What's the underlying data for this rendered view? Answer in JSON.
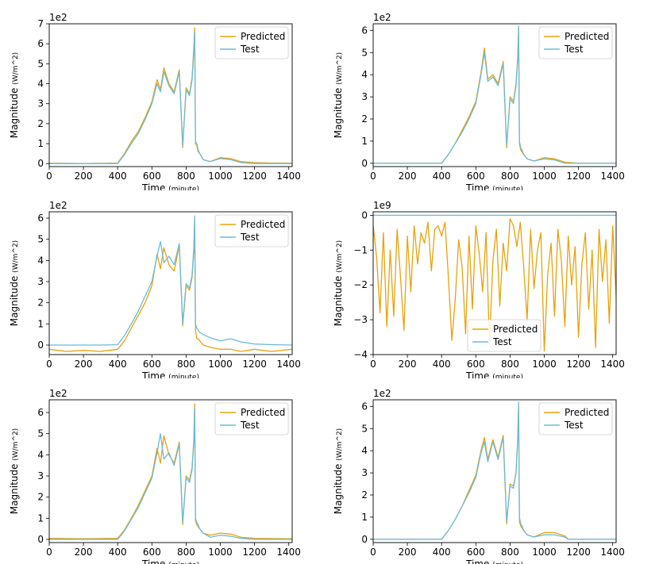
{
  "colors": {
    "predicted": "#e8a20c",
    "test": "#6bbbd6"
  },
  "chart_data": [
    {
      "type": "line",
      "multiplier": "1e2",
      "xlabel": "Time",
      "xlabel_unit": "(minute)",
      "ylabel": "Magnitude",
      "ylabel_unit": "(W/m^2)",
      "xlim": [
        0,
        1420
      ],
      "ylim": [
        -0.15,
        7.0
      ],
      "xticks": [
        0,
        200,
        400,
        600,
        800,
        1000,
        1200,
        1400
      ],
      "yticks": [
        0,
        1,
        2,
        3,
        4,
        5,
        6,
        7
      ],
      "legend": "top-right",
      "series": [
        {
          "name": "Predicted",
          "x": [
            0,
            200,
            400,
            440,
            480,
            520,
            560,
            600,
            630,
            650,
            670,
            700,
            730,
            760,
            780,
            800,
            820,
            835,
            845,
            850,
            855,
            862,
            870,
            880,
            900,
            940,
            1000,
            1060,
            1120,
            1200,
            1300,
            1420
          ],
          "y": [
            0.02,
            0.0,
            0.03,
            0.5,
            1.1,
            1.6,
            2.3,
            3.1,
            4.2,
            3.7,
            4.8,
            4.0,
            3.6,
            4.7,
            0.8,
            3.8,
            3.5,
            4.3,
            5.8,
            6.8,
            1.0,
            0.9,
            0.6,
            0.5,
            0.2,
            0.1,
            0.3,
            0.25,
            0.1,
            0.05,
            0.03,
            0.02
          ]
        },
        {
          "name": "Test",
          "x": [
            0,
            200,
            400,
            440,
            480,
            520,
            560,
            600,
            630,
            650,
            670,
            700,
            730,
            760,
            780,
            800,
            820,
            835,
            845,
            850,
            855,
            862,
            870,
            880,
            900,
            940,
            1000,
            1060,
            1120,
            1200,
            1300,
            1420
          ],
          "y": [
            0.0,
            0.0,
            0.0,
            0.45,
            1.0,
            1.5,
            2.2,
            3.0,
            4.0,
            3.6,
            4.6,
            3.9,
            3.5,
            4.6,
            0.9,
            3.7,
            3.4,
            4.2,
            5.6,
            6.6,
            1.1,
            1.0,
            0.7,
            0.5,
            0.2,
            0.1,
            0.25,
            0.2,
            0.05,
            0.0,
            0.0,
            0.0
          ]
        }
      ]
    },
    {
      "type": "line",
      "multiplier": "1e2",
      "xlabel": "Time",
      "xlabel_unit": "(minute)",
      "ylabel": "Magnitude",
      "ylabel_unit": "(W/m^2)",
      "xlim": [
        0,
        1420
      ],
      "ylim": [
        -0.15,
        6.3
      ],
      "xticks": [
        0,
        200,
        400,
        600,
        800,
        1000,
        1200,
        1400
      ],
      "yticks": [
        0,
        1,
        2,
        3,
        4,
        5,
        6
      ],
      "legend": "top-right",
      "series": [
        {
          "name": "Predicted",
          "x": [
            0,
            200,
            400,
            440,
            480,
            520,
            560,
            600,
            630,
            650,
            670,
            700,
            730,
            760,
            780,
            800,
            820,
            835,
            845,
            850,
            855,
            862,
            870,
            880,
            900,
            940,
            1000,
            1060,
            1120,
            1200,
            1300,
            1420
          ],
          "y": [
            0.0,
            0.0,
            0.0,
            0.4,
            0.9,
            1.5,
            2.1,
            2.8,
            4.1,
            5.2,
            3.8,
            4.0,
            3.6,
            4.6,
            0.7,
            3.0,
            2.8,
            3.6,
            4.8,
            6.1,
            0.9,
            0.6,
            0.5,
            0.4,
            0.2,
            0.1,
            0.25,
            0.2,
            0.05,
            0.0,
            0.0,
            0.0
          ]
        },
        {
          "name": "Test",
          "x": [
            0,
            200,
            400,
            440,
            480,
            520,
            560,
            600,
            630,
            650,
            670,
            700,
            730,
            760,
            780,
            800,
            820,
            835,
            845,
            850,
            855,
            862,
            870,
            880,
            900,
            940,
            1000,
            1060,
            1120,
            1200,
            1300,
            1420
          ],
          "y": [
            0.0,
            0.0,
            0.0,
            0.4,
            0.9,
            1.4,
            2.0,
            2.7,
            4.0,
            5.0,
            3.7,
            3.9,
            3.5,
            4.5,
            0.8,
            2.9,
            2.7,
            3.5,
            4.7,
            6.2,
            1.0,
            0.7,
            0.6,
            0.4,
            0.2,
            0.1,
            0.2,
            0.15,
            0.0,
            0.0,
            0.0,
            0.0
          ]
        }
      ]
    },
    {
      "type": "line",
      "multiplier": "1e2",
      "xlabel": "Time",
      "xlabel_unit": "(minute)",
      "ylabel": "Magnitude",
      "ylabel_unit": "(W/m^2)",
      "xlim": [
        0,
        1420
      ],
      "ylim": [
        -0.45,
        6.3
      ],
      "xticks": [
        0,
        200,
        400,
        600,
        800,
        1000,
        1200,
        1400
      ],
      "yticks": [
        0,
        1,
        2,
        3,
        4,
        5,
        6
      ],
      "legend": "top-right",
      "series": [
        {
          "name": "Predicted",
          "x": [
            0,
            100,
            200,
            300,
            400,
            440,
            480,
            520,
            560,
            600,
            630,
            650,
            670,
            700,
            730,
            760,
            780,
            800,
            820,
            835,
            845,
            850,
            855,
            862,
            870,
            880,
            900,
            940,
            1000,
            1060,
            1120,
            1200,
            1300,
            1420
          ],
          "y": [
            -0.2,
            -0.3,
            -0.25,
            -0.3,
            -0.2,
            0.2,
            0.8,
            1.4,
            2.0,
            2.8,
            4.3,
            3.6,
            4.6,
            3.8,
            3.5,
            4.7,
            0.9,
            2.8,
            2.6,
            3.2,
            4.4,
            5.8,
            0.7,
            0.3,
            0.3,
            0.2,
            0.0,
            -0.1,
            -0.2,
            -0.2,
            -0.3,
            -0.2,
            -0.3,
            -0.2
          ]
        },
        {
          "name": "Test",
          "x": [
            0,
            100,
            200,
            300,
            400,
            440,
            480,
            520,
            560,
            600,
            630,
            650,
            670,
            700,
            730,
            760,
            780,
            800,
            820,
            835,
            845,
            850,
            855,
            862,
            870,
            880,
            900,
            940,
            1000,
            1060,
            1120,
            1200,
            1300,
            1420
          ],
          "y": [
            0.0,
            0.0,
            0.0,
            0.0,
            0.02,
            0.45,
            1.0,
            1.6,
            2.3,
            3.0,
            4.2,
            4.9,
            3.9,
            4.2,
            3.8,
            4.8,
            1.0,
            2.9,
            2.7,
            3.3,
            4.6,
            6.1,
            1.0,
            0.8,
            0.7,
            0.6,
            0.5,
            0.35,
            0.2,
            0.3,
            0.15,
            0.05,
            0.02,
            0.0
          ]
        }
      ]
    },
    {
      "type": "line",
      "multiplier": "1e9",
      "xlabel": "Time",
      "xlabel_unit": "(minute)",
      "ylabel": "Magnitude",
      "ylabel_unit": "(W/m^2)",
      "xlim": [
        0,
        1420
      ],
      "ylim": [
        -4.0,
        0.1
      ],
      "xticks": [
        0,
        200,
        400,
        600,
        800,
        1000,
        1200,
        1400
      ],
      "yticks": [
        0,
        -1,
        -2,
        -3,
        -4
      ],
      "legend": "lower-center",
      "series": [
        {
          "name": "Predicted",
          "x": [
            0,
            20,
            40,
            60,
            80,
            100,
            120,
            140,
            160,
            180,
            200,
            220,
            240,
            260,
            280,
            300,
            320,
            340,
            360,
            380,
            400,
            420,
            440,
            460,
            480,
            500,
            520,
            540,
            560,
            580,
            600,
            620,
            640,
            660,
            680,
            700,
            720,
            740,
            760,
            780,
            800,
            820,
            840,
            860,
            880,
            900,
            920,
            940,
            960,
            980,
            1000,
            1020,
            1040,
            1060,
            1080,
            1100,
            1120,
            1140,
            1160,
            1180,
            1200,
            1220,
            1240,
            1260,
            1280,
            1300,
            1320,
            1340,
            1360,
            1380,
            1400,
            1420
          ],
          "y": [
            -0.3,
            -1.2,
            -2.8,
            -0.5,
            -3.2,
            -1.0,
            -2.9,
            -0.4,
            -1.8,
            -3.3,
            -0.6,
            -2.2,
            -0.3,
            -1.4,
            -0.5,
            -0.8,
            -0.2,
            -1.6,
            -0.4,
            -0.3,
            -0.6,
            -0.2,
            -1.8,
            -3.6,
            -2.4,
            -0.7,
            -1.5,
            -3.4,
            -0.6,
            -2.7,
            -0.3,
            -1.1,
            -2.2,
            -0.5,
            -3.7,
            -1.3,
            -0.4,
            -2.6,
            -0.8,
            -1.6,
            -0.1,
            -0.3,
            -0.9,
            -0.2,
            -1.5,
            -3.0,
            -0.4,
            -2.1,
            -1.0,
            -0.5,
            -3.9,
            -1.7,
            -0.8,
            -2.9,
            -0.4,
            -1.3,
            -3.2,
            -0.6,
            -2.0,
            -0.9,
            -3.5,
            -1.4,
            -0.5,
            -2.7,
            -1.0,
            -3.8,
            -0.4,
            -1.9,
            -0.7,
            -3.1,
            -0.3,
            -2.3
          ]
        },
        {
          "name": "Test",
          "x": [
            0,
            1420
          ],
          "y": [
            0.0,
            0.0
          ]
        }
      ]
    },
    {
      "type": "line",
      "multiplier": "1e2",
      "xlabel": "Time",
      "xlabel_unit": "(minute)",
      "ylabel": "Magnitude",
      "ylabel_unit": "(W/m^2)",
      "xlim": [
        0,
        1420
      ],
      "ylim": [
        -0.15,
        6.6
      ],
      "xticks": [
        0,
        200,
        400,
        600,
        800,
        1000,
        1200,
        1400
      ],
      "yticks": [
        0,
        1,
        2,
        3,
        4,
        5,
        6
      ],
      "legend": "top-right",
      "series": [
        {
          "name": "Predicted",
          "x": [
            0,
            200,
            400,
            440,
            480,
            520,
            560,
            600,
            630,
            650,
            670,
            700,
            730,
            760,
            780,
            800,
            820,
            835,
            845,
            850,
            855,
            862,
            870,
            880,
            900,
            940,
            1000,
            1060,
            1120,
            1200,
            1300,
            1420
          ],
          "y": [
            0.05,
            0.03,
            0.05,
            0.45,
            1.0,
            1.6,
            2.3,
            3.0,
            4.3,
            3.6,
            4.9,
            4.0,
            3.6,
            4.6,
            0.7,
            3.0,
            2.8,
            3.4,
            4.7,
            6.4,
            0.9,
            0.7,
            0.6,
            0.5,
            0.3,
            0.2,
            0.3,
            0.25,
            0.1,
            0.05,
            0.04,
            0.03
          ]
        },
        {
          "name": "Test",
          "x": [
            0,
            200,
            400,
            440,
            480,
            520,
            560,
            600,
            630,
            650,
            670,
            700,
            730,
            760,
            780,
            800,
            820,
            835,
            845,
            850,
            855,
            862,
            870,
            880,
            900,
            940,
            1000,
            1060,
            1120,
            1200,
            1300,
            1420
          ],
          "y": [
            0.0,
            0.0,
            0.0,
            0.4,
            0.95,
            1.5,
            2.2,
            2.9,
            4.1,
            5.0,
            3.8,
            4.1,
            3.5,
            4.5,
            0.8,
            2.9,
            2.7,
            3.3,
            4.6,
            6.2,
            1.0,
            0.8,
            0.7,
            0.5,
            0.3,
            0.1,
            0.2,
            0.15,
            0.05,
            0.0,
            0.0,
            0.0
          ]
        }
      ]
    },
    {
      "type": "line",
      "multiplier": "1e2",
      "xlabel": "Time",
      "xlabel_unit": "(minute)",
      "ylabel": "Magnitude",
      "ylabel_unit": "(W/m^2)",
      "xlim": [
        0,
        1420
      ],
      "ylim": [
        -0.15,
        6.3
      ],
      "xticks": [
        0,
        200,
        400,
        600,
        800,
        1000,
        1200,
        1400
      ],
      "yticks": [
        0,
        1,
        2,
        3,
        4,
        5,
        6
      ],
      "legend": "top-right",
      "series": [
        {
          "name": "Predicted",
          "x": [
            0,
            200,
            400,
            440,
            480,
            520,
            560,
            600,
            630,
            650,
            670,
            700,
            730,
            760,
            780,
            800,
            820,
            835,
            845,
            850,
            855,
            862,
            870,
            880,
            900,
            940,
            1000,
            1060,
            1120,
            1140,
            1200,
            1300,
            1420
          ],
          "y": [
            0.0,
            0.0,
            0.0,
            0.4,
            0.9,
            1.5,
            2.2,
            2.9,
            4.0,
            4.6,
            3.6,
            4.5,
            3.7,
            4.7,
            0.7,
            2.5,
            2.4,
            3.0,
            4.6,
            6.0,
            0.8,
            0.6,
            0.5,
            0.4,
            0.2,
            0.1,
            0.3,
            0.3,
            0.15,
            0.0,
            0.0,
            0.0,
            0.0
          ]
        },
        {
          "name": "Test",
          "x": [
            0,
            200,
            400,
            440,
            480,
            520,
            560,
            600,
            630,
            650,
            670,
            700,
            730,
            760,
            780,
            800,
            820,
            835,
            845,
            850,
            855,
            862,
            870,
            880,
            900,
            940,
            1000,
            1060,
            1120,
            1140,
            1200,
            1300,
            1420
          ],
          "y": [
            0.0,
            0.0,
            0.0,
            0.4,
            0.9,
            1.5,
            2.1,
            2.8,
            3.9,
            4.4,
            3.5,
            4.4,
            3.6,
            4.6,
            0.8,
            2.4,
            2.3,
            3.0,
            4.5,
            6.2,
            1.0,
            0.7,
            0.6,
            0.4,
            0.2,
            0.1,
            0.2,
            0.2,
            0.1,
            0.0,
            0.0,
            0.0,
            0.0
          ]
        }
      ]
    }
  ]
}
